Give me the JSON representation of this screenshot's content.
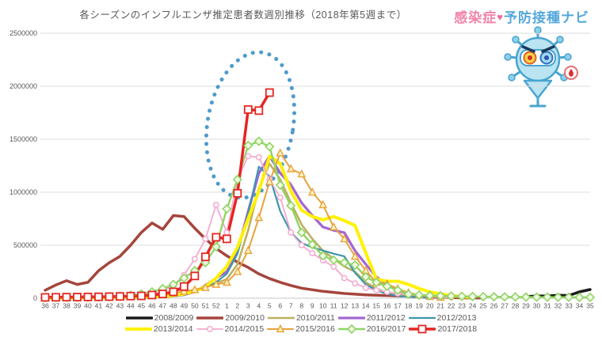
{
  "page": {
    "background": "#ffffff"
  },
  "header": {
    "title": "各シーズンのインフルエンザ推定患者数週別推移（2018年第5週まで）"
  },
  "logo": {
    "part1": "感染症",
    "heart": "♥",
    "part2": "予防接種ナビ",
    "pink": "#F285A8",
    "blue": "#54A8DC",
    "mascot_icon": "virus-mascot-icon"
  },
  "chart_data": {
    "type": "line",
    "title": "各シーズンのインフルエンザ推定患者数週別推移（2018年第5週まで）",
    "xlabel": "",
    "ylabel": "",
    "ylim": [
      0,
      2500000
    ],
    "grid": true,
    "legend_position": "bottom",
    "y_ticks": [
      0,
      500000,
      1000000,
      1500000,
      2000000,
      2500000
    ],
    "y_tick_labels": [
      "0",
      "500000",
      "1000000",
      "1500000",
      "2000000",
      "2500000"
    ],
    "categories": [
      "36",
      "37",
      "38",
      "39",
      "40",
      "41",
      "42",
      "43",
      "44",
      "45",
      "46",
      "47",
      "48",
      "49",
      "50",
      "51",
      "52",
      "1",
      "2",
      "3",
      "4",
      "5",
      "6",
      "7",
      "8",
      "9",
      "10",
      "11",
      "12",
      "13",
      "14",
      "15",
      "16",
      "17",
      "18",
      "19",
      "20",
      "21",
      "22",
      "23",
      "24",
      "25",
      "26",
      "27",
      "28",
      "29",
      "30",
      "31",
      "32",
      "33",
      "34",
      "35"
    ],
    "annotation": {
      "shape": "dotted-ellipse",
      "color": "#4E9BCB",
      "highlights": "2017/2018 surge weeks 1-5",
      "center_week": "3",
      "center_value": 800000
    },
    "series": [
      {
        "name": "2008/2009",
        "color": "#1a1a1a",
        "width": 3.5,
        "marker": "none",
        "values": [
          null,
          null,
          null,
          null,
          null,
          null,
          null,
          null,
          null,
          null,
          null,
          null,
          null,
          null,
          null,
          null,
          null,
          null,
          null,
          null,
          null,
          null,
          null,
          null,
          null,
          null,
          null,
          null,
          null,
          null,
          null,
          null,
          null,
          null,
          null,
          null,
          null,
          null,
          null,
          null,
          null,
          null,
          null,
          null,
          null,
          15000,
          22000,
          20000,
          28000,
          25000,
          60000,
          82000
        ]
      },
      {
        "name": "2009/2010",
        "color": "#A5453C",
        "width": 3.5,
        "marker": "none",
        "values": [
          75000,
          125000,
          165000,
          130000,
          150000,
          260000,
          335000,
          395000,
          500000,
          620000,
          710000,
          650000,
          780000,
          770000,
          660000,
          560000,
          470000,
          400000,
          340000,
          290000,
          230000,
          185000,
          150000,
          120000,
          95000,
          80000,
          65000,
          55000,
          45000,
          38000,
          32000,
          28000,
          25000,
          22000,
          20000,
          15000,
          12000,
          8000,
          6000,
          4000,
          3000,
          2000,
          null,
          null,
          null,
          null,
          null,
          null,
          null,
          null,
          null,
          null
        ]
      },
      {
        "name": "2010/2011",
        "color": "#BDB060",
        "width": 2.6,
        "marker": "none",
        "values": [
          2000,
          2000,
          3000,
          3000,
          4000,
          4000,
          5000,
          6000,
          8000,
          10000,
          12000,
          18000,
          28000,
          45000,
          75000,
          110000,
          140000,
          180000,
          320000,
          640000,
          1040000,
          1270000,
          1120000,
          900000,
          694000,
          560000,
          448000,
          373000,
          300000,
          250000,
          150000,
          90000,
          50000,
          30000,
          18000,
          10000,
          6000,
          3000,
          2000,
          null,
          null,
          null,
          null,
          null,
          null,
          null,
          null,
          null,
          null,
          null,
          null,
          null
        ]
      },
      {
        "name": "2011/2012",
        "color": "#A466D2",
        "width": 3.2,
        "marker": "none",
        "values": [
          1000,
          1000,
          1000,
          2000,
          2000,
          2000,
          3000,
          3000,
          4000,
          5000,
          8000,
          12000,
          20000,
          32000,
          60000,
          120000,
          190000,
          250000,
          440000,
          820000,
          1180000,
          1340000,
          1180000,
          1070000,
          900000,
          780000,
          672000,
          640000,
          619000,
          448000,
          321000,
          201000,
          127000,
          75000,
          40000,
          20000,
          10000,
          5000,
          null,
          null,
          null,
          null,
          null,
          null,
          null,
          null,
          null,
          null,
          null,
          null,
          null,
          null
        ]
      },
      {
        "name": "2012/2013",
        "color": "#3E96AE",
        "width": 2.2,
        "marker": "none",
        "values": [
          1000,
          1000,
          1000,
          1000,
          2000,
          2000,
          2000,
          3000,
          3000,
          4000,
          6000,
          10000,
          18000,
          30000,
          60000,
          100000,
          150000,
          230000,
          420000,
          800000,
          1240000,
          1150000,
          820000,
          620000,
          520000,
          480000,
          450000,
          420000,
          395000,
          240000,
          130000,
          75000,
          40000,
          22000,
          12000,
          6000,
          3000,
          null,
          null,
          null,
          null,
          null,
          null,
          null,
          null,
          null,
          null,
          null,
          null,
          null,
          null,
          null
        ]
      },
      {
        "name": "2013/2014",
        "color": "#FFF100",
        "width": 4,
        "marker": "none",
        "values": [
          2000,
          2000,
          3000,
          3000,
          4000,
          5000,
          6000,
          8000,
          10000,
          12000,
          15000,
          15000,
          25000,
          40000,
          65000,
          110000,
          190000,
          300000,
          480000,
          750000,
          1010000,
          1340000,
          1270000,
          1010000,
          830000,
          770000,
          740000,
          770000,
          731000,
          686000,
          430000,
          180000,
          160000,
          160000,
          130000,
          90000,
          60000,
          40000,
          25000,
          15000,
          8000,
          null,
          null,
          null,
          null,
          null,
          null,
          null,
          null,
          null,
          null,
          null
        ]
      },
      {
        "name": "2014/2015",
        "color": "#F5A9CF",
        "width": 1.8,
        "marker": "circle",
        "values": [
          3000,
          3000,
          4000,
          4000,
          5000,
          6000,
          7000,
          9000,
          15000,
          25000,
          40000,
          70000,
          120000,
          220000,
          370000,
          560000,
          880000,
          620000,
          1120000,
          1340000,
          1330000,
          1120000,
          950000,
          620000,
          500000,
          425000,
          358000,
          298000,
          190000,
          140000,
          97000,
          75000,
          60000,
          45000,
          35000,
          25000,
          18000,
          12000,
          8000,
          null,
          null,
          null,
          null,
          null,
          null,
          null,
          null,
          null,
          null,
          null,
          null,
          null
        ]
      },
      {
        "name": "2015/2016",
        "color": "#E9A23B",
        "width": 2,
        "marker": "triangle",
        "marker_fill": "#FFF3C0",
        "values": [
          3000,
          3000,
          4000,
          5000,
          6000,
          7000,
          8000,
          10000,
          15000,
          18000,
          25000,
          35000,
          50000,
          65000,
          80000,
          100000,
          130000,
          150000,
          250000,
          450000,
          760000,
          1100000,
          1370000,
          1220000,
          1172000,
          1000000,
          881000,
          672000,
          560000,
          395000,
          261000,
          150000,
          135000,
          90000,
          52000,
          30000,
          15000,
          8000,
          null,
          null,
          null,
          null,
          null,
          null,
          null,
          null,
          null,
          null,
          null,
          null,
          null,
          null
        ]
      },
      {
        "name": "2016/2017",
        "color": "#90D465",
        "width": 2.4,
        "marker": "diamond",
        "marker_fill": "#F0FAE4",
        "values": [
          5000,
          6000,
          7000,
          8000,
          10000,
          12000,
          15000,
          18000,
          28000,
          40000,
          60000,
          90000,
          130000,
          190000,
          260000,
          336000,
          485000,
          843000,
          1119000,
          1440000,
          1480000,
          1430000,
          1067000,
          873000,
          619000,
          507000,
          400000,
          360000,
          336000,
          313000,
          201000,
          149000,
          112000,
          75000,
          37000,
          30000,
          25000,
          22000,
          20000,
          18000,
          16000,
          15000,
          14000,
          13000,
          12000,
          11000,
          10000,
          10000,
          9000,
          9000,
          8000,
          8000
        ]
      },
      {
        "name": "2017/2018",
        "color": "#E52521",
        "width": 3.5,
        "marker": "square",
        "marker_fill": "#FFFFFF",
        "values": [
          8000,
          9000,
          10000,
          11000,
          12000,
          13000,
          15000,
          17000,
          20000,
          22000,
          30000,
          40000,
          60000,
          110000,
          210000,
          390000,
          575000,
          560000,
          990000,
          1780000,
          1770000,
          1940000,
          null,
          null,
          null,
          null,
          null,
          null,
          null,
          null,
          null,
          null,
          null,
          null,
          null,
          null,
          null,
          null,
          null,
          null,
          null,
          null,
          null,
          null,
          null,
          null,
          null,
          null,
          null,
          null,
          null,
          null
        ]
      }
    ]
  }
}
